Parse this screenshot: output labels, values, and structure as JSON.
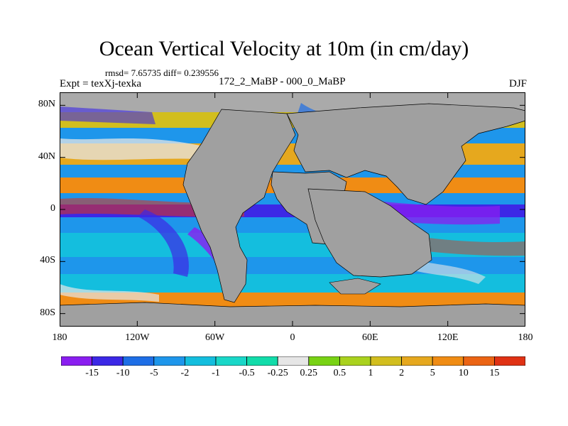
{
  "title": "Ocean Vertical Velocity at 10m (in cm/day)",
  "stats": "rmsd= 7.65735 diff= 0.239556",
  "experiment": "Expt = texXj-texka",
  "comparison": "172_2_MaBP - 000_0_MaBP",
  "season": "DJF",
  "axes": {
    "lat_labels": [
      {
        "label": "80N",
        "lat": 80
      },
      {
        "label": "40N",
        "lat": 40
      },
      {
        "label": "0",
        "lat": 0
      },
      {
        "label": "40S",
        "lat": -40
      },
      {
        "label": "80S",
        "lat": -80
      }
    ],
    "lon_labels": [
      {
        "label": "180",
        "lon": -180
      },
      {
        "label": "120W",
        "lon": -120
      },
      {
        "label": "60W",
        "lon": -60
      },
      {
        "label": "0",
        "lon": 0
      },
      {
        "label": "60E",
        "lon": 60
      },
      {
        "label": "120E",
        "lon": 120
      },
      {
        "label": "180",
        "lon": 180
      }
    ],
    "lat_range": [
      -90,
      90
    ],
    "lon_range": [
      -180,
      180
    ]
  },
  "colorbar": {
    "colors": [
      "#8a1ef0",
      "#3c28e6",
      "#1e6ee6",
      "#1e96eb",
      "#14bede",
      "#19d7c8",
      "#12dcaa",
      "#e6e6e6",
      "#78d214",
      "#aad21e",
      "#d2be1e",
      "#e6a81e",
      "#f08c14",
      "#eb6414",
      "#e03214"
    ],
    "labels": [
      "-15",
      "-10",
      "-5",
      "-2",
      "-1",
      "-0.5",
      "-0.25",
      "0.25",
      "0.5",
      "1",
      "2",
      "5",
      "10",
      "15"
    ]
  },
  "land_color": "#a0a0a0"
}
